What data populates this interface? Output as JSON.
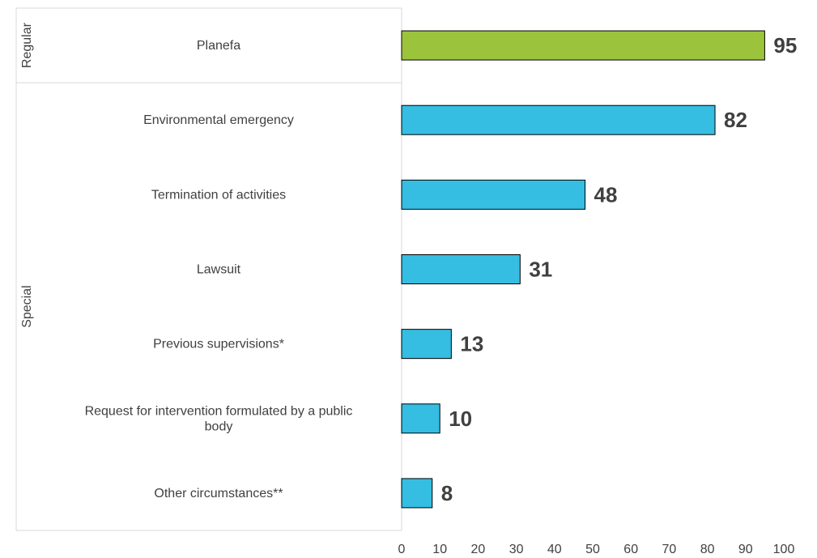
{
  "chart_data": {
    "type": "bar",
    "orientation": "horizontal",
    "title": "",
    "xlabel": "",
    "ylabel": "",
    "xlim": [
      0,
      100
    ],
    "x_ticks": [
      0,
      10,
      20,
      30,
      40,
      50,
      60,
      70,
      80,
      90,
      100
    ],
    "grid": false,
    "groups": [
      {
        "name": "Regular",
        "categories": [
          "Planefa"
        ]
      },
      {
        "name": "Special",
        "categories": [
          "Environmental emergency",
          "Termination of activities",
          "Lawsuit",
          "Previous supervisions*",
          "Request for intervention formulated by a public body",
          "Other circumstances**"
        ]
      }
    ],
    "categories": [
      "Planefa",
      "Environmental emergency",
      "Termination of activities",
      "Lawsuit",
      "Previous supervisions*",
      "Request for intervention formulated by a public body",
      "Other circumstances**"
    ],
    "category_lines": [
      [
        "Planefa"
      ],
      [
        "Environmental emergency"
      ],
      [
        "Termination of activities"
      ],
      [
        "Lawsuit"
      ],
      [
        "Previous supervisions*"
      ],
      [
        "Request for intervention formulated by a public",
        "body"
      ],
      [
        "Other circumstances**"
      ]
    ],
    "values": [
      95,
      82,
      48,
      31,
      13,
      10,
      8
    ],
    "colors": {
      "regular": "#9bc43c",
      "special": "#35bde2"
    }
  }
}
